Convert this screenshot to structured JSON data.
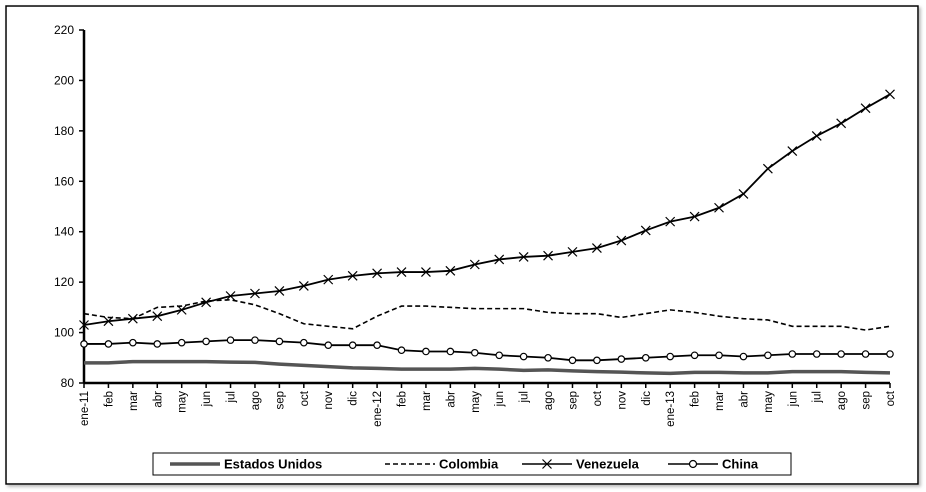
{
  "chart_data": {
    "type": "line",
    "title": "",
    "xlabel": "",
    "ylabel": "",
    "ylim": [
      80,
      220
    ],
    "yticks": [
      80,
      100,
      120,
      140,
      160,
      180,
      200,
      220
    ],
    "grid": false,
    "legend_position": "bottom",
    "categories": [
      "ene-11",
      "feb",
      "mar",
      "abr",
      "may",
      "jun",
      "jul",
      "ago",
      "sep",
      "oct",
      "nov",
      "dic",
      "ene-12",
      "feb",
      "mar",
      "abr",
      "may",
      "jun",
      "jul",
      "ago",
      "sep",
      "oct",
      "nov",
      "dic",
      "ene-13",
      "feb",
      "mar",
      "abr",
      "may",
      "jun",
      "jul",
      "ago",
      "sep",
      "oct"
    ],
    "series": [
      {
        "name": "Estados Unidos",
        "style": "solid-thick",
        "color": "#555555",
        "values": [
          88,
          88,
          88.5,
          88.5,
          88.5,
          88.5,
          88.3,
          88.2,
          87.5,
          87,
          86.5,
          86,
          85.8,
          85.5,
          85.5,
          85.5,
          85.8,
          85.5,
          85,
          85.2,
          84.8,
          84.5,
          84.3,
          84,
          83.8,
          84.2,
          84.2,
          84,
          84,
          84.5,
          84.5,
          84.5,
          84.2,
          84
        ]
      },
      {
        "name": "Colombia",
        "style": "dashed",
        "color": "#000000",
        "values": [
          107.5,
          106,
          105.5,
          110,
          110.5,
          112.5,
          113,
          111,
          107.5,
          103.5,
          102.5,
          101.5,
          106.5,
          110.5,
          110.5,
          110,
          109.5,
          109.5,
          109.5,
          108,
          107.5,
          107.5,
          106,
          107.5,
          109,
          108,
          106.5,
          105.5,
          105,
          102.5,
          102.5,
          102.5,
          101,
          102.5
        ]
      },
      {
        "name": "Venezuela",
        "style": "solid-cross",
        "color": "#000000",
        "values": [
          103,
          104.5,
          105.5,
          106.5,
          109,
          112,
          114.5,
          115.5,
          116.5,
          118.5,
          121,
          122.5,
          123.5,
          124,
          124,
          124.5,
          127,
          129,
          130,
          130.5,
          132,
          133.5,
          136.5,
          140.5,
          144,
          146,
          149.5,
          155,
          165,
          172,
          178,
          183,
          189,
          194.5
        ]
      },
      {
        "name": "China",
        "style": "solid-circle",
        "color": "#000000",
        "values": [
          95.5,
          95.5,
          96,
          95.5,
          96,
          96.5,
          97,
          97,
          96.5,
          96,
          95,
          95,
          95,
          93,
          92.5,
          92.5,
          92,
          91,
          90.5,
          90,
          89,
          89,
          89.5,
          90,
          90.5,
          91,
          91,
          90.5,
          91,
          91.5,
          91.5,
          91.5,
          91.5,
          91.5
        ]
      }
    ]
  }
}
